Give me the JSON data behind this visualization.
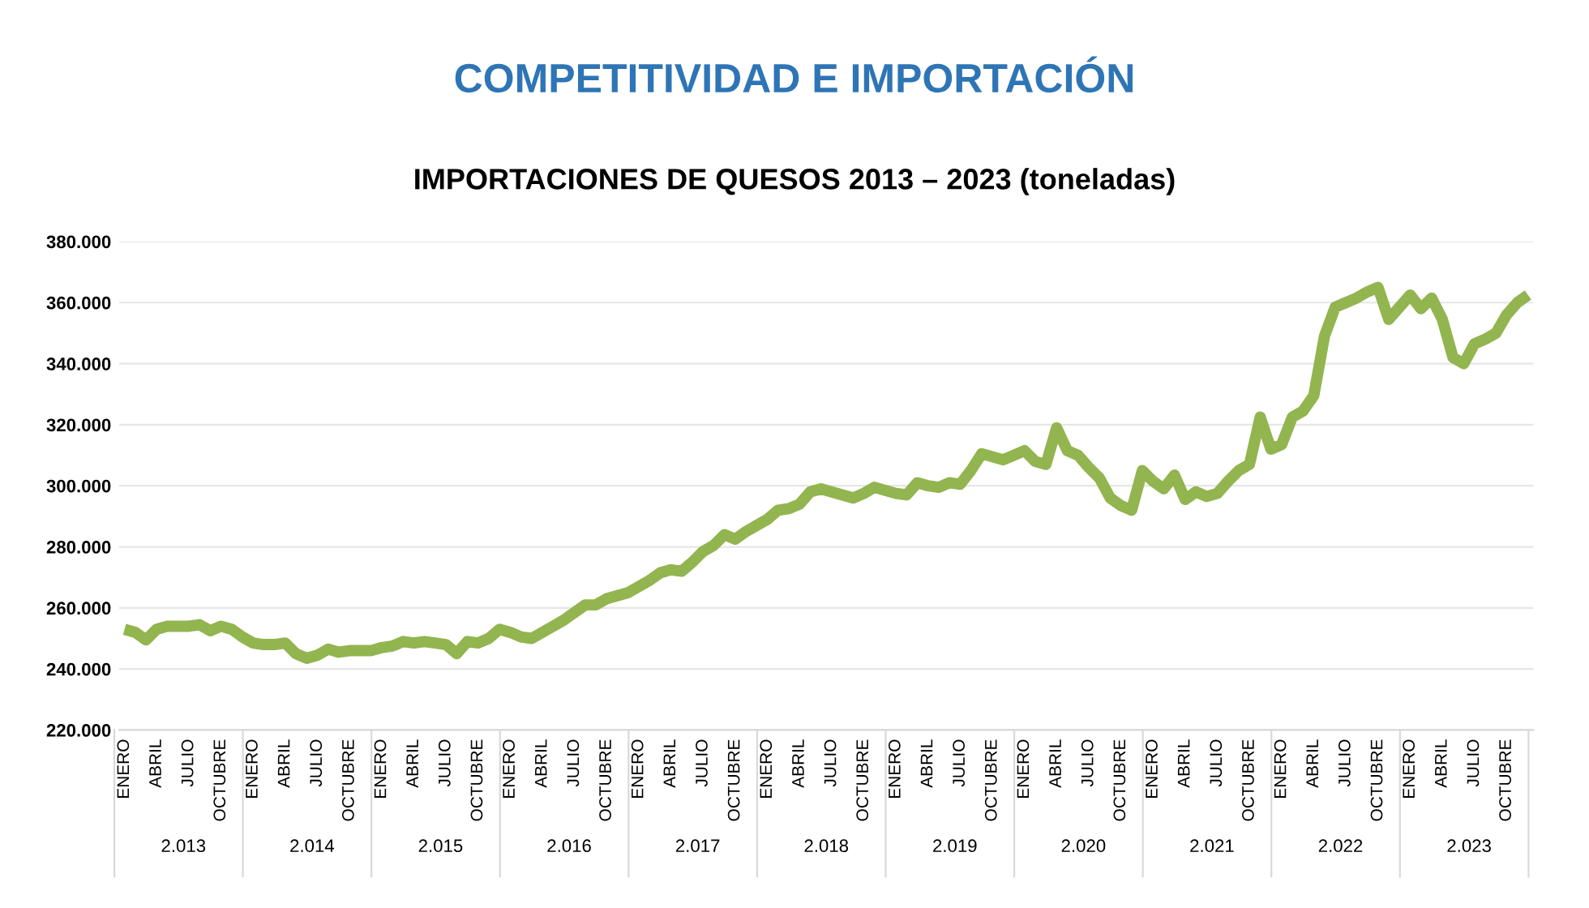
{
  "chart_data": {
    "type": "line",
    "title": "COMPETITIVIDAD E IMPORTACIÓN",
    "subtitle": "IMPORTACIONES DE QUESOS 2013 – 2023 (toneladas)",
    "categories": [
      "ENERO",
      null,
      null,
      "ABRIL",
      null,
      null,
      "JULIO",
      null,
      null,
      "OCTUBRE",
      null,
      null,
      "ENERO",
      null,
      null,
      "ABRIL",
      null,
      null,
      "JULIO",
      null,
      null,
      "OCTUBRE",
      null,
      null,
      "ENERO",
      null,
      null,
      "ABRIL",
      null,
      null,
      "JULIO",
      null,
      null,
      "OCTUBRE",
      null,
      null,
      "ENERO",
      null,
      null,
      "ABRIL",
      null,
      null,
      "JULIO",
      null,
      null,
      "OCTUBRE",
      null,
      null,
      "ENERO",
      null,
      null,
      "ABRIL",
      null,
      null,
      "JULIO",
      null,
      null,
      "OCTUBRE",
      null,
      null,
      "ENERO",
      null,
      null,
      "ABRIL",
      null,
      null,
      "JULIO",
      null,
      null,
      "OCTUBRE",
      null,
      null,
      "ENERO",
      null,
      null,
      "ABRIL",
      null,
      null,
      "JULIO",
      null,
      null,
      "OCTUBRE",
      null,
      null,
      "ENERO",
      null,
      null,
      "ABRIL",
      null,
      null,
      "JULIO",
      null,
      null,
      "OCTUBRE",
      null,
      null,
      "ENERO",
      null,
      null,
      "ABRIL",
      null,
      null,
      "JULIO",
      null,
      null,
      "OCTUBRE",
      null,
      null,
      "ENERO",
      null,
      null,
      "ABRIL",
      null,
      null,
      "JULIO",
      null,
      null,
      "OCTUBRE",
      null,
      null,
      "ENERO",
      null,
      null,
      "ABRIL",
      null,
      null,
      "JULIO",
      null,
      null,
      "OCTUBRE",
      null,
      null
    ],
    "series": [
      {
        "color": "#92b550",
        "values": [
          253000,
          252000,
          249500,
          253000,
          254000,
          254000,
          254000,
          254500,
          252500,
          254000,
          253000,
          250500,
          248500,
          248000,
          248000,
          248500,
          245000,
          243500,
          244500,
          246500,
          245500,
          246000,
          246000,
          246000,
          247000,
          247500,
          249000,
          248500,
          249000,
          248500,
          248000,
          245000,
          249000,
          248500,
          250000,
          253000,
          252000,
          250500,
          250000,
          252000,
          254000,
          256000,
          258500,
          261000,
          261000,
          263000,
          264000,
          265000,
          267000,
          269000,
          271500,
          272500,
          272000,
          275000,
          278500,
          280500,
          284000,
          282500,
          285000,
          287000,
          289000,
          292000,
          292500,
          294000,
          298000,
          299000,
          298000,
          297000,
          296000,
          297500,
          299500,
          298500,
          297500,
          297000,
          301000,
          300000,
          299500,
          301000,
          300500,
          305000,
          310500,
          309500,
          308500,
          310000,
          311500,
          308000,
          307000,
          319000,
          311500,
          310000,
          306000,
          302500,
          296000,
          293500,
          292000,
          305000,
          301500,
          299000,
          303500,
          295500,
          298000,
          296500,
          297500,
          301500,
          305000,
          307000,
          322500,
          312000,
          313500,
          322500,
          324500,
          329500,
          349000,
          358500,
          360000,
          361500,
          363500,
          365000,
          354500,
          358500,
          362500,
          358000,
          361500,
          354500,
          342000,
          340000,
          346500,
          348000,
          350000,
          356000,
          360000,
          362500
        ]
      }
    ],
    "ylim": [
      220000,
      380000
    ],
    "yticks": [
      {
        "value": 220000,
        "label": "220.000"
      },
      {
        "value": 240000,
        "label": "240.000"
      },
      {
        "value": 260000,
        "label": "260.000"
      },
      {
        "value": 280000,
        "label": "280.000"
      },
      {
        "value": 300000,
        "label": "300.000"
      },
      {
        "value": 320000,
        "label": "320.000"
      },
      {
        "value": 340000,
        "label": "340.000"
      },
      {
        "value": 360000,
        "label": "360.000"
      },
      {
        "value": 380000,
        "label": "380.000"
      }
    ],
    "annotations": [
      "2.013",
      "2.014",
      "2.015",
      "2.016",
      "2.017",
      "2.018",
      "2.019",
      "2.020",
      "2.021",
      "2.022",
      "2.023"
    ],
    "grid": "y",
    "legend": false,
    "marker": "none",
    "line_style": "solid"
  }
}
